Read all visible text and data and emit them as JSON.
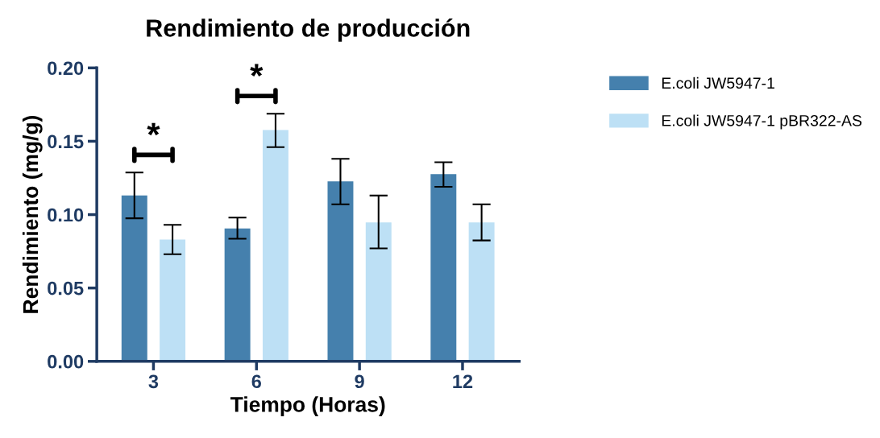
{
  "chart_data": {
    "type": "bar",
    "title": "Rendimiento de producción",
    "xlabel": "Tiempo (Horas)",
    "ylabel": "Rendimiento (mg/g)",
    "categories": [
      "3",
      "6",
      "9",
      "12"
    ],
    "series": [
      {
        "name": "E.coli JW5947-1",
        "color": "#4580ad",
        "values": [
          0.113,
          0.0905,
          0.1226,
          0.1276
        ],
        "errors": [
          [
            0.0975,
            0.1287
          ],
          [
            0.0836,
            0.098
          ],
          [
            0.107,
            0.138
          ],
          [
            0.119,
            0.1357
          ]
        ]
      },
      {
        "name": "E.coli JW5947-1 pBR322-AS",
        "color": "#bde0f5",
        "values": [
          0.083,
          0.1577,
          0.0947,
          0.0947
        ],
        "errors": [
          [
            0.073,
            0.093
          ],
          [
            0.146,
            0.1688
          ],
          [
            0.077,
            0.113
          ],
          [
            0.0824,
            0.107
          ]
        ]
      }
    ],
    "ylim": [
      0,
      0.2
    ],
    "yticks": [
      {
        "value": 0,
        "label": "0.00"
      },
      {
        "value": 0.05,
        "label": "0.05"
      },
      {
        "value": 0.1,
        "label": "0.10"
      },
      {
        "value": 0.15,
        "label": "0.15"
      },
      {
        "value": 0.2,
        "label": "0.20"
      }
    ],
    "annotations": [
      "*",
      "*"
    ],
    "grid": false,
    "legend": "right"
  }
}
